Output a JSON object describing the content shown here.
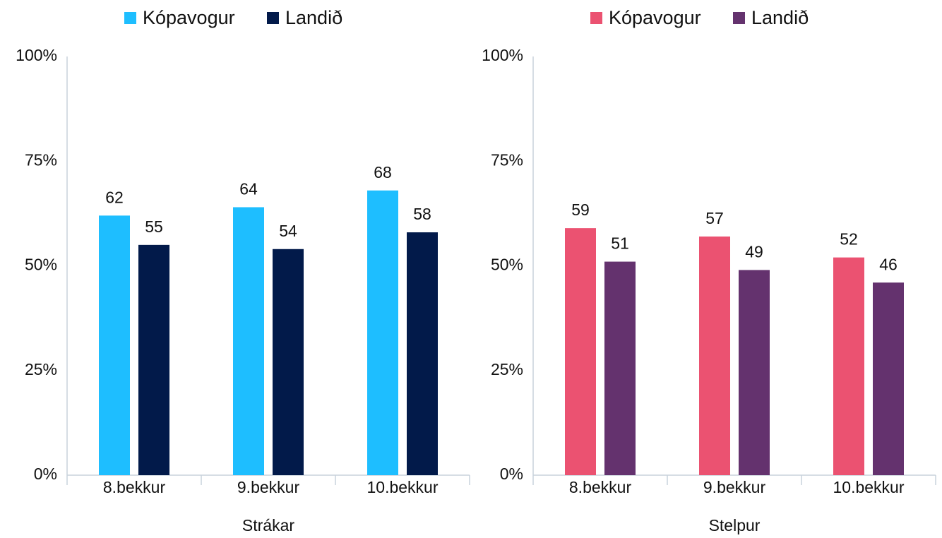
{
  "chart_data": [
    {
      "type": "bar",
      "xlabel": "Strákar",
      "categories": [
        "8.bekkur",
        "9.bekkur",
        "10.bekkur"
      ],
      "series": [
        {
          "name": "Kópavogur",
          "color": "#1ebeff",
          "values": [
            62,
            64,
            68
          ]
        },
        {
          "name": "Landið",
          "color": "#021a4a",
          "values": [
            55,
            54,
            58
          ]
        }
      ],
      "ylim": [
        0,
        100
      ],
      "yticks": [
        {
          "value": 0,
          "label": "0%"
        },
        {
          "value": 25,
          "label": "25%"
        },
        {
          "value": 50,
          "label": "50%"
        },
        {
          "value": 75,
          "label": "75%"
        },
        {
          "value": 100,
          "label": "100%"
        }
      ],
      "grid": false,
      "legend": "top"
    },
    {
      "type": "bar",
      "xlabel": "Stelpur",
      "categories": [
        "8.bekkur",
        "9.bekkur",
        "10.bekkur"
      ],
      "series": [
        {
          "name": "Kópavogur",
          "color": "#eb5271",
          "values": [
            59,
            57,
            52
          ]
        },
        {
          "name": "Landið",
          "color": "#64326e",
          "values": [
            51,
            49,
            46
          ]
        }
      ],
      "ylim": [
        0,
        100
      ],
      "yticks": [
        {
          "value": 0,
          "label": "0%"
        },
        {
          "value": 25,
          "label": "25%"
        },
        {
          "value": 50,
          "label": "50%"
        },
        {
          "value": 75,
          "label": "75%"
        },
        {
          "value": 100,
          "label": "100%"
        }
      ],
      "grid": false,
      "legend": "top"
    }
  ]
}
